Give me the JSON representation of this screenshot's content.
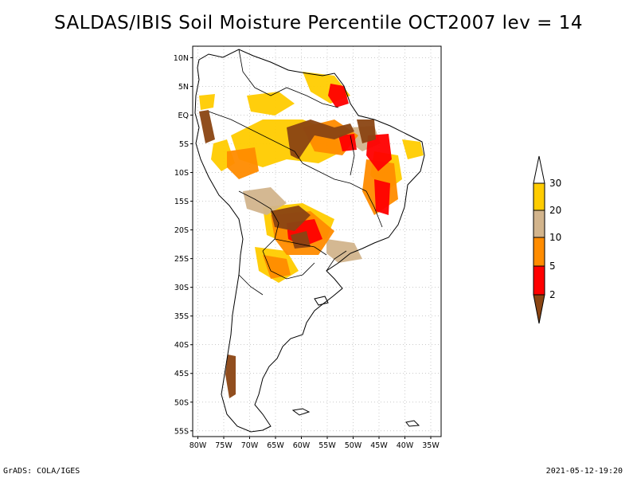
{
  "title": "SALDAS/IBIS Soil Moisture Percentile OCT2007 lev = 14",
  "footer": {
    "left": "GrADS: COLA/IGES",
    "right": "2021-05-12-19:20"
  },
  "map": {
    "lat_labels": [
      "10N",
      "5N",
      "EQ",
      "5S",
      "10S",
      "15S",
      "20S",
      "25S",
      "30S",
      "35S",
      "40S",
      "45S",
      "50S",
      "55S"
    ],
    "lat_values": [
      10,
      5,
      0,
      -5,
      -10,
      -15,
      -20,
      -25,
      -30,
      -35,
      -40,
      -45,
      -50,
      -55
    ],
    "lon_labels": [
      "80W",
      "75W",
      "70W",
      "65W",
      "60W",
      "55W",
      "50W",
      "45W",
      "40W",
      "35W"
    ],
    "lon_values": [
      -80,
      -75,
      -70,
      -65,
      -60,
      -55,
      -50,
      -45,
      -40,
      -35
    ],
    "lon_range": [
      -81,
      -33
    ],
    "lat_range": [
      12,
      -56
    ],
    "grid_color": "#aaaaaa",
    "coast_color": "#000000"
  },
  "colorbar": {
    "labels": [
      "30",
      "20",
      "10",
      "5",
      "2"
    ],
    "colors": [
      "#ffffff",
      "#ffcc00",
      "#d2b48c",
      "#ff8c00",
      "#ff0000",
      "#8b4513"
    ]
  },
  "colors": {
    "dark_brown": "#8b4513",
    "red": "#ff0000",
    "orange": "#ff8c00",
    "tan": "#d2b48c",
    "gold": "#ffcc00"
  }
}
